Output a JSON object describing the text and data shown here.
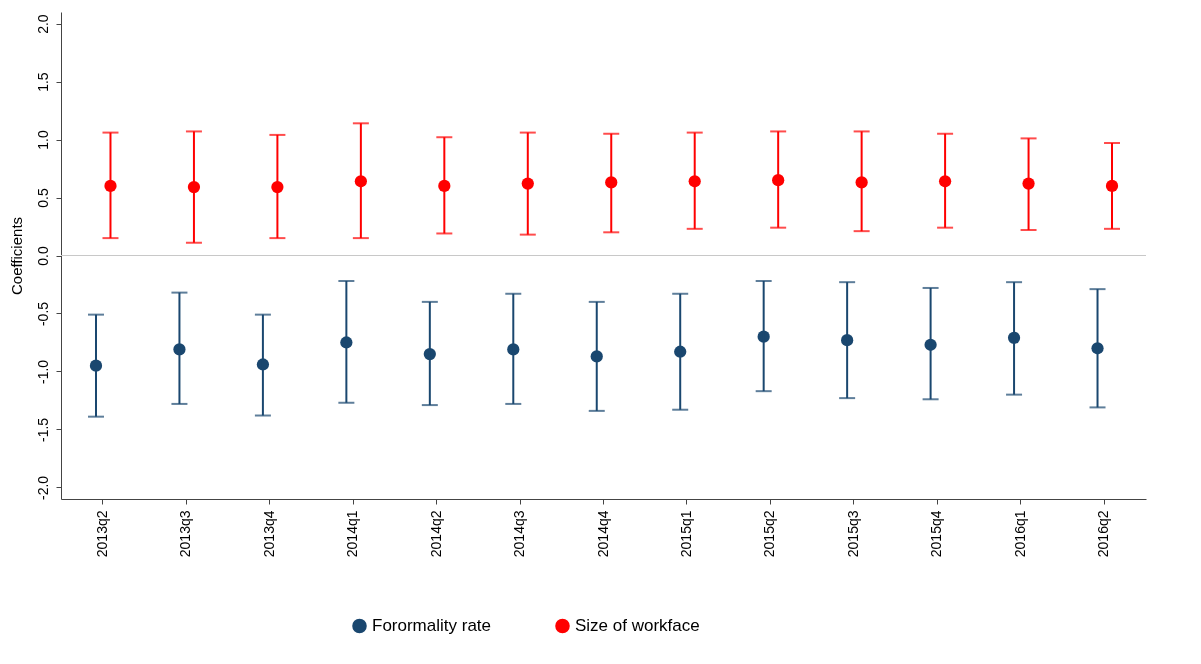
{
  "chart_data": {
    "type": "scatter",
    "ylabel": "Coefficients",
    "categories": [
      "2013q2",
      "2013q3",
      "2013q4",
      "2014q1",
      "2014q2",
      "2014q3",
      "2014q4",
      "2015q1",
      "2015q2",
      "2015q3",
      "2015q4",
      "2016q1",
      "2016q2"
    ],
    "series": [
      {
        "name": "Forormality rate",
        "color": "#1a476f",
        "values": [
          -0.95,
          -0.81,
          -0.94,
          -0.75,
          -0.85,
          -0.81,
          -0.87,
          -0.83,
          -0.7,
          -0.73,
          -0.77,
          -0.71,
          -0.8
        ],
        "errors": [
          [
            -1.39,
            -0.51
          ],
          [
            -1.28,
            -0.32
          ],
          [
            -1.38,
            -0.51
          ],
          [
            -1.27,
            -0.22
          ],
          [
            -1.29,
            -0.4
          ],
          [
            -1.28,
            -0.33
          ],
          [
            -1.34,
            -0.4
          ],
          [
            -1.33,
            -0.33
          ],
          [
            -1.17,
            -0.22
          ],
          [
            -1.23,
            -0.23
          ],
          [
            -1.24,
            -0.28
          ],
          [
            -1.2,
            -0.23
          ],
          [
            -1.31,
            -0.29
          ]
        ]
      },
      {
        "name": "Size of workface",
        "color": "#ff0000",
        "values": [
          0.6,
          0.59,
          0.59,
          0.64,
          0.6,
          0.62,
          0.63,
          0.64,
          0.65,
          0.63,
          0.64,
          0.62,
          0.6
        ],
        "errors": [
          [
            0.15,
            1.06
          ],
          [
            0.11,
            1.07
          ],
          [
            0.15,
            1.04
          ],
          [
            0.15,
            1.14
          ],
          [
            0.19,
            1.02
          ],
          [
            0.18,
            1.06
          ],
          [
            0.2,
            1.05
          ],
          [
            0.23,
            1.06
          ],
          [
            0.24,
            1.07
          ],
          [
            0.21,
            1.07
          ],
          [
            0.24,
            1.05
          ],
          [
            0.22,
            1.01
          ],
          [
            0.23,
            0.97
          ]
        ]
      }
    ],
    "ylim": [
      -2.1,
      2.1
    ],
    "yticks": [
      {
        "value": -2,
        "label": "-2.0"
      },
      {
        "value": -1.5,
        "label": "-1.5"
      },
      {
        "value": -1,
        "label": "-1.0"
      },
      {
        "value": -0.5,
        "label": "-0.5"
      },
      {
        "value": 0,
        "label": "0.0"
      },
      {
        "value": 0.5,
        "label": "0.5"
      },
      {
        "value": 1,
        "label": "1.0"
      },
      {
        "value": 1.5,
        "label": "1.5"
      },
      {
        "value": 2,
        "label": "2.0"
      }
    ],
    "ref_lines": [
      {
        "axis": "y",
        "value": 0,
        "color": "#c8c8c8"
      }
    ],
    "marker": "circle",
    "grid": false,
    "legend": "bottom"
  }
}
